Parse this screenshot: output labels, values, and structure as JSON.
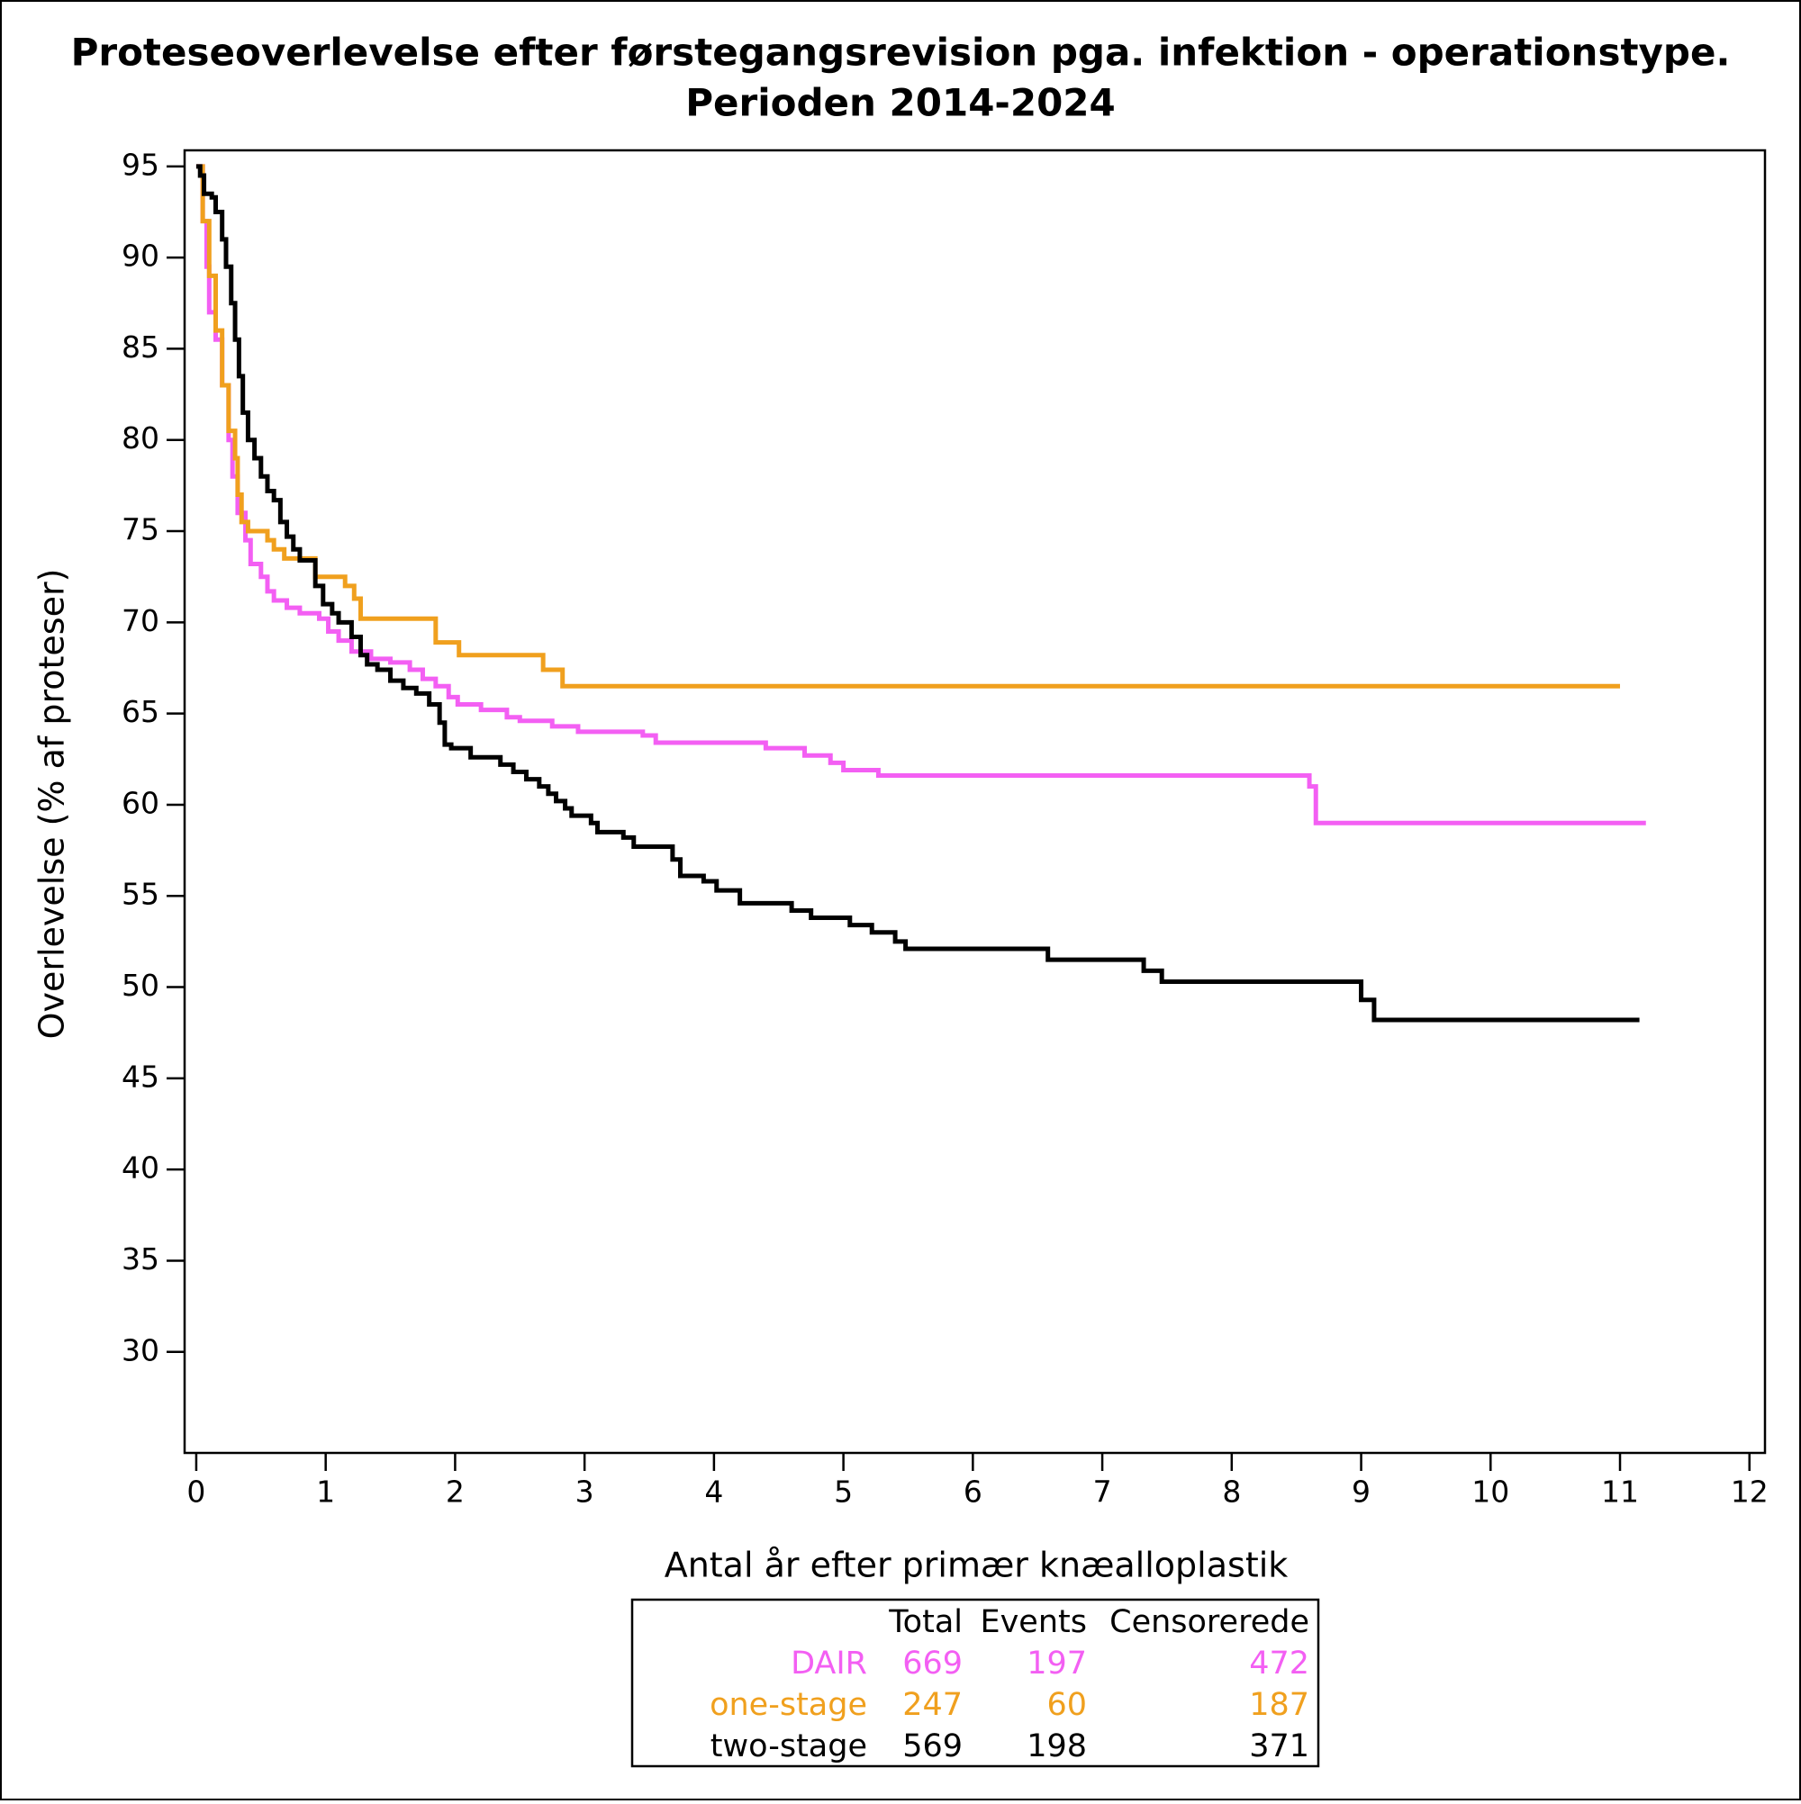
{
  "chart_data": {
    "type": "step",
    "title": [
      "Proteseoverlevelse efter førstegangsrevision pga. infektion - operationstype.",
      "Perioden 2014-2024"
    ],
    "x_label": "Antal år efter primær knæalloplastik",
    "y_label": "Overlevelse (% af proteser)",
    "xlim": [
      -0.09,
      12.12
    ],
    "ylim": [
      24.46,
      95.88
    ],
    "xticks": [
      0,
      1,
      2,
      3,
      4,
      5,
      6,
      7,
      8,
      9,
      10,
      11,
      12
    ],
    "yticks": [
      30,
      35,
      40,
      45,
      50,
      55,
      60,
      65,
      70,
      75,
      80,
      85,
      90,
      95
    ],
    "interpolation": "step-after",
    "table_header": [
      "Total",
      "Events",
      "Censorerede"
    ],
    "series": [
      {
        "name": "DAIR",
        "color": "#f35ff3",
        "total": 669,
        "events": 197,
        "censored": 472,
        "x": [
          0,
          0.05,
          0.08,
          0.1,
          0.15,
          0.2,
          0.25,
          0.28,
          0.32,
          0.38,
          0.42,
          0.5,
          0.55,
          0.6,
          0.7,
          0.8,
          0.95,
          1.02,
          1.1,
          1.2,
          1.35,
          1.5,
          1.65,
          1.75,
          1.85,
          1.95,
          2.02,
          2.2,
          2.4,
          2.5,
          2.75,
          2.95,
          3.45,
          3.55,
          4.4,
          4.7,
          4.9,
          5.0,
          5.27,
          8.6,
          8.65,
          11.2
        ],
        "values": [
          95,
          92,
          89.5,
          87,
          85.5,
          83,
          80,
          78,
          76,
          74.5,
          73.2,
          72.5,
          71.7,
          71.2,
          70.8,
          70.5,
          70.2,
          69.5,
          69,
          68.4,
          68,
          67.8,
          67.4,
          66.9,
          66.5,
          65.9,
          65.5,
          65.2,
          64.8,
          64.6,
          64.3,
          64.0,
          63.8,
          63.4,
          63.1,
          62.7,
          62.3,
          61.9,
          61.6,
          61.0,
          59.0,
          59.0
        ]
      },
      {
        "name": "one-stage",
        "color": "#f0a01e",
        "total": 247,
        "events": 60,
        "censored": 187,
        "x": [
          0,
          0.05,
          0.1,
          0.15,
          0.2,
          0.25,
          0.3,
          0.32,
          0.35,
          0.4,
          0.55,
          0.6,
          0.68,
          0.92,
          1.15,
          1.22,
          1.27,
          1.85,
          2.03,
          2.68,
          2.83,
          11.0
        ],
        "values": [
          95,
          92,
          89,
          86,
          83,
          80.5,
          79,
          77,
          75.5,
          75,
          74.5,
          74,
          73.5,
          72.5,
          72,
          71.3,
          70.2,
          68.9,
          68.2,
          67.4,
          66.5,
          66.5
        ]
      },
      {
        "name": "two-stage",
        "color": "#000000",
        "total": 569,
        "events": 198,
        "censored": 371,
        "x": [
          0,
          0.03,
          0.06,
          0.12,
          0.15,
          0.2,
          0.23,
          0.27,
          0.3,
          0.33,
          0.36,
          0.4,
          0.45,
          0.5,
          0.55,
          0.6,
          0.65,
          0.7,
          0.75,
          0.8,
          0.92,
          0.98,
          1.05,
          1.1,
          1.2,
          1.27,
          1.32,
          1.4,
          1.5,
          1.6,
          1.7,
          1.8,
          1.88,
          1.92,
          1.97,
          2.12,
          2.35,
          2.45,
          2.55,
          2.65,
          2.72,
          2.78,
          2.85,
          2.9,
          3.05,
          3.1,
          3.3,
          3.38,
          3.68,
          3.74,
          3.92,
          4.02,
          4.2,
          4.6,
          4.75,
          5.05,
          5.22,
          5.4,
          5.48,
          6.58,
          7.32,
          7.46,
          9.0,
          9.1,
          11.15
        ],
        "values": [
          95,
          94.5,
          93.5,
          93.3,
          92.5,
          91,
          89.5,
          87.5,
          85.5,
          83.5,
          81.5,
          80,
          79,
          78,
          77.2,
          76.7,
          75.5,
          74.7,
          74,
          73.4,
          72,
          71,
          70.5,
          70,
          69.2,
          68.2,
          67.7,
          67.4,
          66.8,
          66.4,
          66.1,
          65.5,
          64.5,
          63.3,
          63.1,
          62.6,
          62.2,
          61.8,
          61.4,
          61.0,
          60.6,
          60.2,
          59.8,
          59.4,
          59.0,
          58.5,
          58.2,
          57.7,
          57.0,
          56.1,
          55.8,
          55.3,
          54.6,
          54.2,
          53.8,
          53.4,
          53.0,
          52.5,
          52.1,
          51.5,
          50.9,
          50.3,
          49.3,
          48.2,
          48.2
        ]
      }
    ]
  }
}
